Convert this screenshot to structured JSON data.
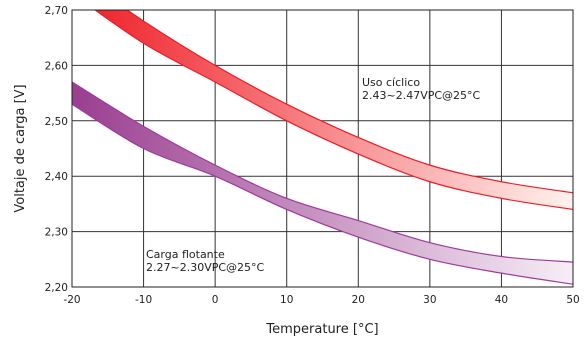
{
  "chart_data": {
    "type": "area",
    "title": "",
    "xlabel": "Temperature [°C]",
    "ylabel": "Voltaje de carga  [V]",
    "xlim": [
      -20,
      50
    ],
    "ylim": [
      2.2,
      2.7
    ],
    "x_ticks": [
      -20,
      -10,
      0,
      10,
      20,
      30,
      40,
      50
    ],
    "y_ticks": [
      2.2,
      2.3,
      2.4,
      2.5,
      2.6,
      2.7
    ],
    "x_tick_labels": [
      "-20",
      "-10",
      "0",
      "10",
      "20",
      "30",
      "40",
      "50"
    ],
    "y_tick_labels": [
      "2,20",
      "2,30",
      "2,40",
      "2,50",
      "2,60",
      "2,70"
    ],
    "grid": true,
    "legend": "none",
    "series": [
      {
        "name": "Uso cíclico",
        "annotation": [
          "Uso cíclico",
          "2.43~2.47VPC@25°C"
        ],
        "colors": {
          "start": "#ee1c25",
          "end": "#fff2ee",
          "line": "#ee1c25"
        },
        "x": [
          -20,
          -10,
          0,
          10,
          20,
          30,
          40,
          50
        ],
        "upper": [
          2.77,
          2.68,
          2.6,
          2.53,
          2.47,
          2.42,
          2.39,
          2.37
        ],
        "lower": [
          2.73,
          2.64,
          2.57,
          2.5,
          2.44,
          2.39,
          2.36,
          2.34
        ]
      },
      {
        "name": "Carga flotante",
        "annotation": [
          "Carga flotante",
          "2.27~2.30VPC@25°C"
        ],
        "colors": {
          "start": "#9a3e90",
          "end": "#f6eef6",
          "line": "#a0399c"
        },
        "x": [
          -20,
          -10,
          0,
          10,
          20,
          30,
          40,
          50
        ],
        "upper": [
          2.57,
          2.49,
          2.42,
          2.36,
          2.32,
          2.28,
          2.255,
          2.245
        ],
        "lower": [
          2.53,
          2.45,
          2.4,
          2.34,
          2.29,
          2.25,
          2.225,
          2.205
        ]
      }
    ]
  }
}
